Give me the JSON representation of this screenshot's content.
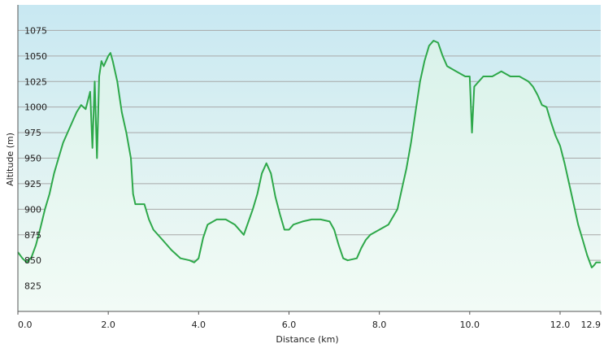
{
  "chart_data": {
    "type": "area",
    "title": "",
    "xlabel": "Distance  (km)",
    "ylabel": "Altitude (m)",
    "xlim": [
      0,
      12.9
    ],
    "ylim": [
      800,
      1100
    ],
    "x_ticks": [
      0,
      2,
      4,
      6,
      8,
      10,
      12,
      12.9
    ],
    "x_tick_labels": [
      "0.0",
      "2.0",
      "4.0",
      "6.0",
      "8.0",
      "10.0",
      "12.0",
      "12.9"
    ],
    "y_ticks": [
      825,
      850,
      875,
      900,
      925,
      950,
      975,
      1000,
      1025,
      1050,
      1075
    ],
    "y_tick_labels": [
      "825",
      "850",
      "875",
      "900",
      "925",
      "950",
      "975",
      "1000",
      "1025",
      "1050",
      "1075"
    ],
    "grid": true,
    "legend": "none",
    "colors": {
      "line": "#2ea84a",
      "fill_top": "#d9f2ea",
      "fill_bottom": "#f2fbf6",
      "bg_top": "#c8e8f2",
      "bg_bottom": "#f4fbf3",
      "grid": "#a8a8a8"
    },
    "series": [
      {
        "x": [
          0.0,
          0.1,
          0.2,
          0.3,
          0.4,
          0.5,
          0.6,
          0.7,
          0.8,
          0.9,
          1.0,
          1.1,
          1.2,
          1.3,
          1.4,
          1.5,
          1.6,
          1.65,
          1.7,
          1.75,
          1.8,
          1.85,
          1.9,
          2.0,
          2.05,
          2.1,
          2.2,
          2.3,
          2.4,
          2.5,
          2.55,
          2.6,
          2.7,
          2.8,
          2.9,
          3.0,
          3.2,
          3.4,
          3.6,
          3.8,
          3.9,
          4.0,
          4.1,
          4.2,
          4.4,
          4.6,
          4.8,
          5.0,
          5.2,
          5.3,
          5.4,
          5.5,
          5.6,
          5.7,
          5.8,
          5.9,
          6.0,
          6.1,
          6.3,
          6.5,
          6.7,
          6.9,
          7.0,
          7.1,
          7.2,
          7.3,
          7.5,
          7.6,
          7.7,
          7.8,
          8.0,
          8.2,
          8.4,
          8.5,
          8.6,
          8.7,
          8.8,
          8.9,
          9.0,
          9.1,
          9.2,
          9.3,
          9.4,
          9.5,
          9.7,
          9.9,
          10.0,
          10.05,
          10.1,
          10.2,
          10.3,
          10.5,
          10.7,
          10.9,
          11.1,
          11.3,
          11.4,
          11.5,
          11.6,
          11.7,
          11.8,
          11.9,
          12.0,
          12.1,
          12.2,
          12.3,
          12.4,
          12.5,
          12.6,
          12.7,
          12.75,
          12.8,
          12.9
        ],
        "y": [
          858,
          852,
          848,
          853,
          865,
          882,
          900,
          915,
          935,
          950,
          965,
          975,
          985,
          995,
          1002,
          998,
          1015,
          960,
          1025,
          950,
          1030,
          1045,
          1040,
          1050,
          1053,
          1045,
          1025,
          995,
          975,
          950,
          915,
          905,
          905,
          905,
          890,
          880,
          870,
          860,
          852,
          850,
          848,
          852,
          872,
          885,
          890,
          890,
          885,
          875,
          900,
          915,
          935,
          945,
          935,
          912,
          895,
          880,
          880,
          885,
          888,
          890,
          890,
          888,
          880,
          865,
          852,
          850,
          852,
          862,
          870,
          875,
          880,
          885,
          900,
          920,
          940,
          965,
          995,
          1025,
          1045,
          1060,
          1065,
          1063,
          1050,
          1040,
          1035,
          1030,
          1030,
          975,
          1020,
          1025,
          1030,
          1030,
          1035,
          1030,
          1030,
          1025,
          1020,
          1012,
          1002,
          1000,
          985,
          972,
          962,
          945,
          925,
          905,
          885,
          870,
          855,
          843,
          845,
          848,
          848
        ]
      }
    ]
  }
}
